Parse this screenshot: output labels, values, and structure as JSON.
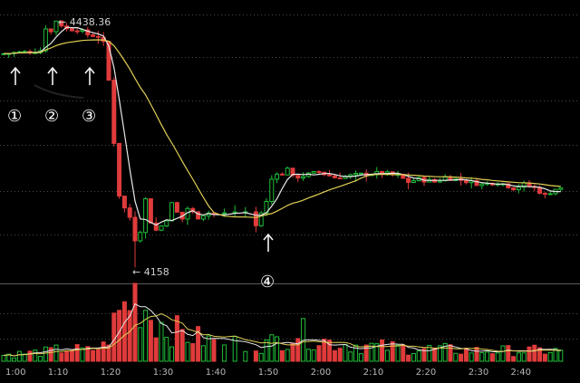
{
  "chart_data": {
    "type": "candlestick",
    "title": "",
    "x_ticks": [
      "1:00",
      "1:10",
      "1:20",
      "1:30",
      "1:40",
      "1:50",
      "2:00",
      "2:10",
      "2:20",
      "2:30",
      "2:40"
    ],
    "price_annotations": [
      {
        "label": "← 4438.36",
        "value": 4438.36
      },
      {
        "label": "← 4158",
        "value": 4158
      }
    ],
    "markers": [
      {
        "label": "①",
        "time_min": 61
      },
      {
        "label": "②",
        "time_min": 70
      },
      {
        "label": "③",
        "time_min": 77
      },
      {
        "label": "④",
        "time_min": 109
      }
    ],
    "price_range": [
      4145,
      4455
    ],
    "price_path": [
      [
        60,
        4400
      ],
      [
        65,
        4402
      ],
      [
        68,
        4404
      ],
      [
        69,
        4430
      ],
      [
        70,
        4425
      ],
      [
        71,
        4438
      ],
      [
        73,
        4428
      ],
      [
        75,
        4428
      ],
      [
        77,
        4422
      ],
      [
        79,
        4420
      ],
      [
        80,
        4412
      ],
      [
        81,
        4370
      ],
      [
        82,
        4300
      ],
      [
        83,
        4240
      ],
      [
        84,
        4225
      ],
      [
        85,
        4215
      ],
      [
        86,
        4190
      ],
      [
        87,
        4200
      ],
      [
        88,
        4235
      ],
      [
        89,
        4210
      ],
      [
        90,
        4200
      ],
      [
        91,
        4205
      ],
      [
        92,
        4213
      ],
      [
        93,
        4230
      ],
      [
        94,
        4220
      ],
      [
        95,
        4213
      ],
      [
        96,
        4225
      ],
      [
        97,
        4220
      ],
      [
        98,
        4215
      ],
      [
        99,
        4218
      ],
      [
        100,
        4220
      ],
      [
        102,
        4218
      ],
      [
        104,
        4220
      ],
      [
        106,
        4222
      ],
      [
        108,
        4220
      ],
      [
        109,
        4205
      ],
      [
        110,
        4220
      ],
      [
        111,
        4232
      ],
      [
        112,
        4258
      ],
      [
        113,
        4266
      ],
      [
        114,
        4262
      ],
      [
        115,
        4272
      ],
      [
        116,
        4260
      ],
      [
        118,
        4262
      ],
      [
        121,
        4266
      ],
      [
        124,
        4260
      ],
      [
        127,
        4262
      ],
      [
        130,
        4264
      ],
      [
        133,
        4265
      ],
      [
        136,
        4262
      ],
      [
        138,
        4255
      ],
      [
        140,
        4258
      ],
      [
        143,
        4255
      ],
      [
        145,
        4260
      ],
      [
        148,
        4257
      ],
      [
        152,
        4252
      ],
      [
        155,
        4255
      ],
      [
        158,
        4248
      ],
      [
        160,
        4252
      ],
      [
        162,
        4248
      ],
      [
        164,
        4240
      ],
      [
        166,
        4247
      ]
    ],
    "volume_profile": [
      [
        60,
        6
      ],
      [
        68,
        9
      ],
      [
        72,
        12
      ],
      [
        76,
        10
      ],
      [
        79,
        14
      ],
      [
        82,
        45
      ],
      [
        85,
        65
      ],
      [
        88,
        45
      ],
      [
        91,
        32
      ],
      [
        95,
        25
      ],
      [
        100,
        18
      ],
      [
        110,
        16
      ],
      [
        116,
        28
      ],
      [
        122,
        18
      ],
      [
        130,
        14
      ],
      [
        140,
        12
      ],
      [
        150,
        10
      ],
      [
        166,
        10
      ]
    ],
    "grid": true
  }
}
